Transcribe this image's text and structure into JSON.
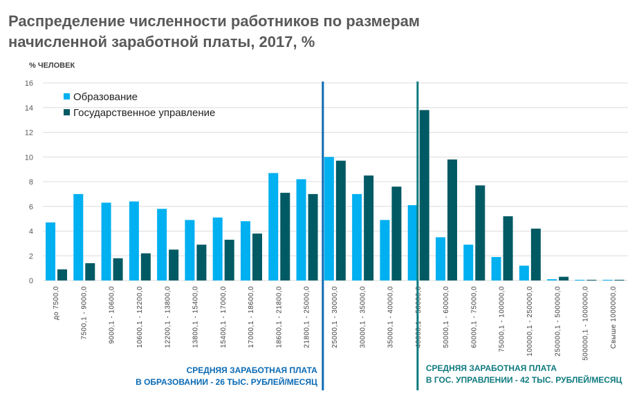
{
  "title_lines": [
    "Распределение численности работников по размерам",
    "начисленной заработной платы, 2017, %"
  ],
  "chart_data": {
    "type": "bar",
    "title": "Распределение численности работников по размерам начисленной заработной платы, 2017, %",
    "ylabel": "% ЧЕЛОВЕК",
    "xlabel": "",
    "ylim": [
      0,
      16
    ],
    "yticks": [
      0,
      2,
      4,
      6,
      8,
      10,
      12,
      14,
      16
    ],
    "grid": true,
    "legend_position": "top-left",
    "categories": [
      "до 7500,0",
      "7500,1 - 9000,0",
      "9000,1 - 10600,0",
      "10600,1 - 12200,0",
      "12200,1 - 13800,0",
      "13800,1 - 15400,0",
      "15400,1 - 17000,0",
      "17000,1 - 18600,0",
      "18600,1 - 21800,0",
      "21800,1 - 25000,0",
      "25000,1 - 30000,0",
      "30000,1 - 35000,0",
      "35000,1 - 40000,0",
      "40000,1 - 50000,0",
      "50000,1 - 60000,0",
      "60000,1 - 75000,0",
      "75000,1 - 100000,0",
      "100000,1 - 250000,0",
      "250000,1 - 500000,0",
      "500000,1 - 1000000,0",
      "Свыше 1000000,0"
    ],
    "series": [
      {
        "name": "Образование",
        "color": "#00b0f0",
        "values": [
          4.7,
          7.0,
          6.3,
          6.4,
          5.8,
          4.9,
          5.1,
          4.8,
          8.7,
          8.2,
          10.0,
          7.0,
          4.9,
          6.1,
          3.5,
          2.9,
          1.9,
          1.2,
          0.1,
          0.05,
          0.05
        ]
      },
      {
        "name": "Государственное управление",
        "color": "#005a64",
        "values": [
          0.9,
          1.4,
          1.8,
          2.2,
          2.5,
          2.9,
          3.3,
          3.8,
          7.1,
          7.0,
          9.7,
          8.5,
          7.6,
          13.8,
          9.8,
          7.7,
          5.2,
          4.2,
          0.3,
          0.05,
          0.05
        ]
      }
    ],
    "annotations": [
      {
        "category_boundary": "25000,1 - 30000,0",
        "color": "#0a6ab4",
        "lines": [
          "СРЕДНЯЯ ЗАРАБОТНАЯ ПЛАТА",
          "В ОБРАЗОВАНИИ - 26 ТЫС. РУБЛЕЙ/МЕСЯЦ"
        ]
      },
      {
        "category_boundary": "40000,1 - 50000,0",
        "color": "#0e7a7e",
        "lines": [
          "СРЕДНЯЯ ЗАРАБОТНАЯ ПЛАТА",
          "В ГОС. УПРАВЛЕНИИ - 42 ТЫС. РУБЛЕЙ/МЕСЯЦ"
        ]
      }
    ]
  }
}
